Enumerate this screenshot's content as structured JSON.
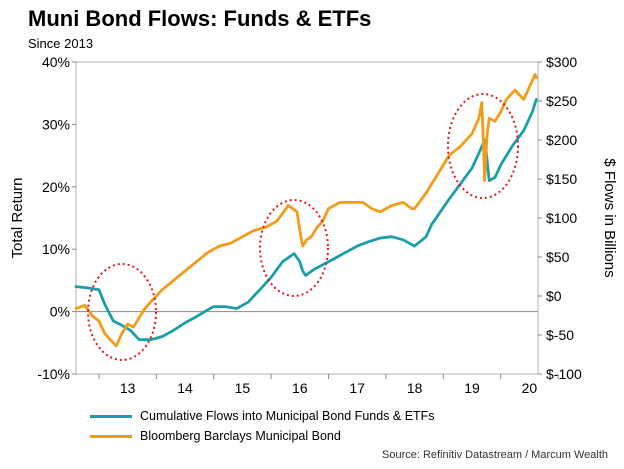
{
  "title": "Muni Bond Flows: Funds & ETFs",
  "subtitle": "Since 2013",
  "source": "Source: Refinitiv Datastream / Marcum Wealth",
  "chart_data": {
    "type": "line",
    "title": "Muni Bond Flows: Funds & ETFs",
    "subtitle": "Since 2013",
    "xlabel": "",
    "ylabel_left": "Total Return",
    "ylabel_right": "$ Flows in Billions",
    "x_ticks": [
      "13",
      "14",
      "15",
      "16",
      "17",
      "18",
      "19",
      "20"
    ],
    "xlim": [
      2012.6,
      2020.65
    ],
    "y_left_ticks": [
      "-10%",
      "0%",
      "10%",
      "20%",
      "30%",
      "40%"
    ],
    "y_left_lim": [
      -10,
      40
    ],
    "y_right_ticks": [
      "$-100",
      "$-50",
      "$0",
      "$50",
      "$100",
      "$150",
      "$200",
      "$250",
      "$300"
    ],
    "y_right_lim": [
      -100,
      300
    ],
    "grid": false,
    "legend_position": "bottom-left",
    "annotations": "red dotted ellipses around mid-2013, mid-2016 and early 2020",
    "series": [
      {
        "name": "Cumulative Flows into Municipal Bond Funds & ETFs",
        "axis": "left",
        "color": "#1a9fa8",
        "x": [
          2012.6,
          2012.8,
          2013.0,
          2013.1,
          2013.25,
          2013.4,
          2013.55,
          2013.7,
          2013.9,
          2014.1,
          2014.3,
          2014.5,
          2014.7,
          2014.9,
          2015.0,
          2015.2,
          2015.4,
          2015.6,
          2015.8,
          2016.0,
          2016.2,
          2016.4,
          2016.5,
          2016.55,
          2016.6,
          2016.75,
          2016.9,
          2017.1,
          2017.3,
          2017.5,
          2017.7,
          2017.9,
          2018.1,
          2018.3,
          2018.5,
          2018.7,
          2018.8,
          2018.95,
          2019.1,
          2019.3,
          2019.5,
          2019.65,
          2019.72,
          2019.75,
          2019.8,
          2019.9,
          2020.0,
          2020.2,
          2020.4,
          2020.55,
          2020.62
        ],
        "y": [
          4,
          3.8,
          3.5,
          1.2,
          -1.5,
          -2.2,
          -3.0,
          -4.5,
          -4.5,
          -4.0,
          -3.0,
          -1.8,
          -0.8,
          0.3,
          0.8,
          0.8,
          0.5,
          1.5,
          3.5,
          5.5,
          8.0,
          9.3,
          8.0,
          6.5,
          5.8,
          6.8,
          7.5,
          8.5,
          9.5,
          10.5,
          11.2,
          11.8,
          12.0,
          11.5,
          10.5,
          12.0,
          14.0,
          16.0,
          18.0,
          20.5,
          23.0,
          26.0,
          27.5,
          25.5,
          21.0,
          21.5,
          23.5,
          26.5,
          29.0,
          32.0,
          34.0
        ]
      },
      {
        "name": "Bloomberg Barclays Municipal Bond",
        "axis": "left",
        "color": "#f39b1a",
        "x": [
          2012.6,
          2012.75,
          2012.9,
          2013.0,
          2013.1,
          2013.2,
          2013.3,
          2013.4,
          2013.5,
          2013.6,
          2013.7,
          2013.8,
          2013.9,
          2014.1,
          2014.3,
          2014.5,
          2014.7,
          2014.9,
          2015.1,
          2015.3,
          2015.5,
          2015.7,
          2015.9,
          2016.1,
          2016.3,
          2016.45,
          2016.5,
          2016.55,
          2016.62,
          2016.7,
          2016.8,
          2016.9,
          2017.0,
          2017.2,
          2017.4,
          2017.6,
          2017.75,
          2017.9,
          2018.1,
          2018.3,
          2018.45,
          2018.5,
          2018.7,
          2018.9,
          2019.1,
          2019.3,
          2019.5,
          2019.62,
          2019.67,
          2019.7,
          2019.72,
          2019.76,
          2019.8,
          2019.9,
          2020.0,
          2020.1,
          2020.25,
          2020.4,
          2020.5,
          2020.6,
          2020.62
        ],
        "y": [
          0.5,
          1.0,
          -0.8,
          -1.5,
          -3.5,
          -4.5,
          -5.5,
          -3.5,
          -2.0,
          -2.5,
          -1.0,
          0.5,
          1.5,
          3.5,
          5.0,
          6.5,
          8.0,
          9.5,
          10.5,
          11.0,
          12.0,
          13.0,
          13.5,
          14.5,
          17.0,
          16.0,
          13.0,
          10.5,
          11.5,
          12.0,
          13.5,
          14.5,
          16.5,
          17.5,
          17.5,
          17.5,
          16.5,
          16.0,
          17.0,
          17.5,
          16.5,
          16.5,
          19.0,
          22.0,
          25.0,
          26.5,
          28.5,
          31.0,
          33.5,
          26.5,
          21.0,
          28.0,
          31.0,
          30.5,
          32.0,
          34.0,
          35.5,
          34.0,
          36.0,
          38.0,
          37.5
        ]
      }
    ]
  }
}
